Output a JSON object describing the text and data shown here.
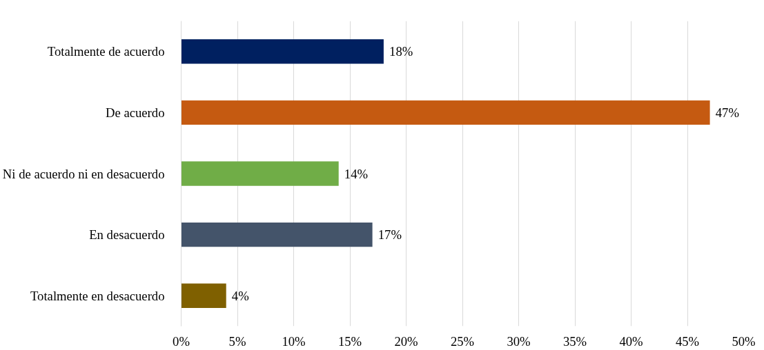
{
  "chart_data": {
    "type": "bar",
    "orientation": "horizontal",
    "categories": [
      "Totalmente de acuerdo",
      "De acuerdo",
      "Ni de acuerdo ni en desacuerdo",
      "En desacuerdo",
      "Totalmente en desacuerdo"
    ],
    "values": [
      18,
      47,
      14,
      17,
      4
    ],
    "colors": [
      "#002060",
      "#c55a11",
      "#70ad47",
      "#44546a",
      "#7f6000"
    ],
    "value_labels": [
      "18%",
      "47%",
      "14%",
      "17%",
      "4%"
    ],
    "xlim": [
      0,
      50
    ],
    "xticks": [
      {
        "value": 0,
        "label": "0%"
      },
      {
        "value": 5,
        "label": "5%"
      },
      {
        "value": 10,
        "label": "10%"
      },
      {
        "value": 15,
        "label": "15%"
      },
      {
        "value": 20,
        "label": "20%"
      },
      {
        "value": 25,
        "label": "25%"
      },
      {
        "value": 30,
        "label": "30%"
      },
      {
        "value": 35,
        "label": "35%"
      },
      {
        "value": 40,
        "label": "40%"
      },
      {
        "value": 45,
        "label": "45%"
      },
      {
        "value": 50,
        "label": "50%"
      }
    ],
    "grid": "x"
  }
}
